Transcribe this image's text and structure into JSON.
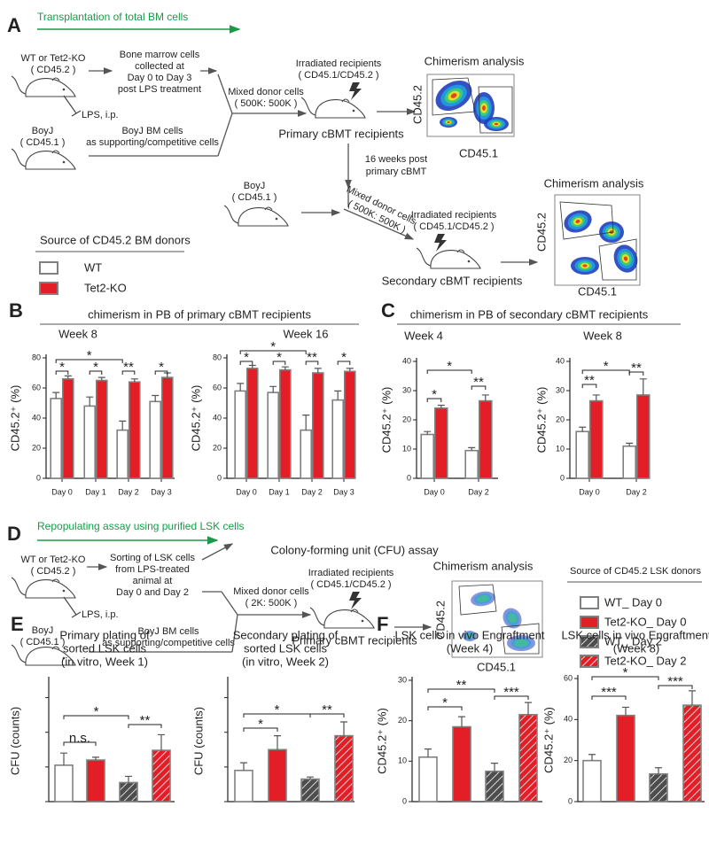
{
  "panels": {
    "A": {
      "label": "A",
      "banner": "Transplantation of total BM cells",
      "donor": [
        "WT or Tet2-KO",
        "( CD45.2 )"
      ],
      "collected": [
        "Bone marrow cells",
        "collected at",
        "Day 0 to Day 3",
        "post LPS treatment"
      ],
      "lps": "LPS, i.p.",
      "boyj": [
        "BoyJ",
        "( CD45.1 )"
      ],
      "support": [
        "BoyJ BM cells",
        "as supporting/competitive cells"
      ],
      "mixed": [
        "Mixed donor cells",
        "( 500K: 500K )"
      ],
      "irradiated": [
        "Irradiated recipients",
        "( CD45.1/CD45.2 )"
      ],
      "primary": "Primary cBMT recipients",
      "chimerism": "Chimerism analysis",
      "axis_y": "CD45.2",
      "axis_x": "CD45.1",
      "interval": [
        "16 weeks post",
        "primary cBMT"
      ],
      "boyj2": [
        "BoyJ",
        "( CD45.1 )"
      ],
      "mixed2": [
        "Mixed donor cells",
        "( 500K: 500K )"
      ],
      "irradiated2": [
        "Irradiated recipients",
        "( CD45.1/CD45.2 )"
      ],
      "secondary": "Secondary cBMT recipients",
      "chimerism2": "Chimerism analysis",
      "axis_y2": "CD45.2",
      "axis_x2": "CD45.1",
      "legend_title": "Source of CD45.2 BM donors",
      "legend": [
        "WT",
        "Tet2-KO"
      ]
    },
    "B": {
      "label": "B",
      "title": "chimerism in PB of primary cBMT recipients"
    },
    "C": {
      "label": "C",
      "title": "chimerism in PB of secondary cBMT recipients"
    },
    "D": {
      "label": "D",
      "banner": "Repopulating assay using purified LSK cells",
      "donor": [
        "WT or Tet2-KO",
        "( CD45.2 )"
      ],
      "sorting": [
        "Sorting of LSK cells",
        "from LPS-treated",
        "animal at",
        "Day 0 and Day 2"
      ],
      "cfu": "Colony-forming unit (CFU) assay",
      "lps": "LPS, i.p.",
      "boyj": [
        "BoyJ",
        "( CD45.1 )"
      ],
      "support": [
        "BoyJ BM cells",
        "as supporting/competitive cells"
      ],
      "mixed": [
        "Mixed donor cells",
        "( 2K: 500K )"
      ],
      "irradiated": [
        "Irradiated recipients",
        "( CD45.1/CD45.2 )"
      ],
      "primary": "Primary cBMT recipients",
      "chimerism": "Chimerism analysis",
      "axis_y": "CD45.2",
      "axis_x": "CD45.1",
      "legend_title": "Source of CD45.2 LSK donors",
      "legend": [
        "WT_ Day 0",
        "Tet2-KO_ Day 0",
        "WT_ Day 2",
        "Tet2-KO_ Day 2"
      ]
    },
    "E": {
      "label": "E"
    },
    "F": {
      "label": "F"
    }
  },
  "chart_data": [
    {
      "type": "bar",
      "title": [
        "Week 8"
      ],
      "y_label": "CD45.2⁺ (%)",
      "categories": [
        "Day 0",
        "Day 1",
        "Day 2",
        "Day 3"
      ],
      "series": [
        {
          "color": "#ffffff",
          "values": [
            53,
            48,
            32,
            51
          ],
          "errors": [
            4,
            6,
            6,
            4
          ]
        },
        {
          "color": "#e41e26",
          "values": [
            66,
            65,
            64,
            67
          ],
          "errors": [
            2,
            2,
            2,
            3
          ]
        }
      ],
      "ylim": [
        0,
        80
      ],
      "yticks": [
        0,
        20,
        40,
        60,
        80
      ],
      "annotations": [
        "*",
        "*",
        "*",
        "**",
        "*"
      ]
    },
    {
      "type": "bar",
      "title": [
        "Week 16"
      ],
      "y_label": "CD45.2⁺ (%)",
      "categories": [
        "Day 0",
        "Day 1",
        "Day 2",
        "Day 3"
      ],
      "series": [
        {
          "color": "#ffffff",
          "values": [
            58,
            57,
            32,
            52
          ],
          "errors": [
            5,
            4,
            10,
            6
          ]
        },
        {
          "color": "#e41e26",
          "values": [
            73,
            72,
            70,
            71
          ],
          "errors": [
            2,
            2,
            3,
            2
          ]
        }
      ],
      "ylim": [
        0,
        80
      ],
      "yticks": [
        0,
        20,
        40,
        60,
        80
      ],
      "annotations": [
        "*",
        "*",
        "*",
        "**",
        "*"
      ]
    },
    {
      "type": "bar",
      "title": [
        "Week 4"
      ],
      "y_label": "CD45.2⁺ (%)",
      "categories": [
        "Day 0",
        "Day 2"
      ],
      "series": [
        {
          "color": "#ffffff",
          "values": [
            15,
            9.5
          ],
          "errors": [
            1,
            1
          ]
        },
        {
          "color": "#e41e26",
          "values": [
            24,
            26.5
          ],
          "errors": [
            1,
            2
          ]
        }
      ],
      "ylim": [
        0,
        40
      ],
      "yticks": [
        0,
        10,
        20,
        30,
        40
      ],
      "annotations": [
        "*",
        "*",
        "**"
      ]
    },
    {
      "type": "bar",
      "title": [
        "Week 8"
      ],
      "y_label": "CD45.2⁺ (%)",
      "categories": [
        "Day 0",
        "Day 2"
      ],
      "series": [
        {
          "color": "#ffffff",
          "values": [
            16,
            11
          ],
          "errors": [
            1.5,
            1
          ]
        },
        {
          "color": "#e41e26",
          "values": [
            26.5,
            28.5
          ],
          "errors": [
            2,
            5.5
          ]
        }
      ],
      "ylim": [
        0,
        40
      ],
      "yticks": [
        0,
        10,
        20,
        30,
        40
      ],
      "annotations": [
        "*",
        "**",
        "**"
      ]
    },
    {
      "type": "bar",
      "title": [
        "Primary plating of",
        "sorted LSK cells",
        "(in vitro, Week 1)"
      ],
      "y_label": "CFU (counts)",
      "values": [
        105,
        120,
        55,
        148
      ],
      "errors": [
        35,
        8,
        18,
        45
      ],
      "colors": [
        "#ffffff",
        "#e41e26",
        "#4d4d4d",
        "#e41e26"
      ],
      "hatched": [
        false,
        false,
        true,
        true
      ],
      "ylim": [
        0,
        350
      ],
      "yticks": [
        0,
        100,
        200,
        300
      ],
      "tick_labels": false,
      "annotations": [
        "*",
        "n.s.",
        "**"
      ]
    },
    {
      "type": "bar",
      "title": [
        "Secondary plating of",
        "sorted LSK cells",
        "(in vitro, Week 2)"
      ],
      "y_label": "CFU (counts)",
      "values": [
        90,
        150,
        65,
        190
      ],
      "errors": [
        22,
        40,
        6,
        40
      ],
      "colors": [
        "#ffffff",
        "#e41e26",
        "#4d4d4d",
        "#e41e26"
      ],
      "hatched": [
        false,
        false,
        true,
        true
      ],
      "ylim": [
        0,
        350
      ],
      "yticks": [
        0,
        100,
        200,
        300
      ],
      "tick_labels": false,
      "annotations": [
        "*",
        "*",
        "**"
      ]
    },
    {
      "type": "bar",
      "title": [
        "LSK cells in vivo Engraftment",
        "(Week 4)"
      ],
      "y_label": "CD45.2⁺ (%)",
      "values": [
        11,
        18.5,
        7.5,
        21.5
      ],
      "errors": [
        2,
        2.5,
        2,
        3
      ],
      "colors": [
        "#ffffff",
        "#e41e26",
        "#4d4d4d",
        "#e41e26"
      ],
      "hatched": [
        false,
        false,
        true,
        true
      ],
      "ylim": [
        0,
        30
      ],
      "yticks": [
        0,
        10,
        20,
        30
      ],
      "annotations": [
        "**",
        "*",
        "***"
      ]
    },
    {
      "type": "bar",
      "title": [
        "LSK cells in vivo Engraftment",
        "(Week 8)"
      ],
      "y_label": "CD45.2⁺ (%)",
      "values": [
        20,
        42,
        13.5,
        47
      ],
      "errors": [
        3,
        4,
        3,
        7
      ],
      "colors": [
        "#ffffff",
        "#e41e26",
        "#4d4d4d",
        "#e41e26"
      ],
      "hatched": [
        false,
        false,
        true,
        true
      ],
      "ylim": [
        0,
        60
      ],
      "yticks": [
        0,
        20,
        40,
        60
      ],
      "annotations": [
        "*",
        "***",
        "***"
      ]
    }
  ]
}
